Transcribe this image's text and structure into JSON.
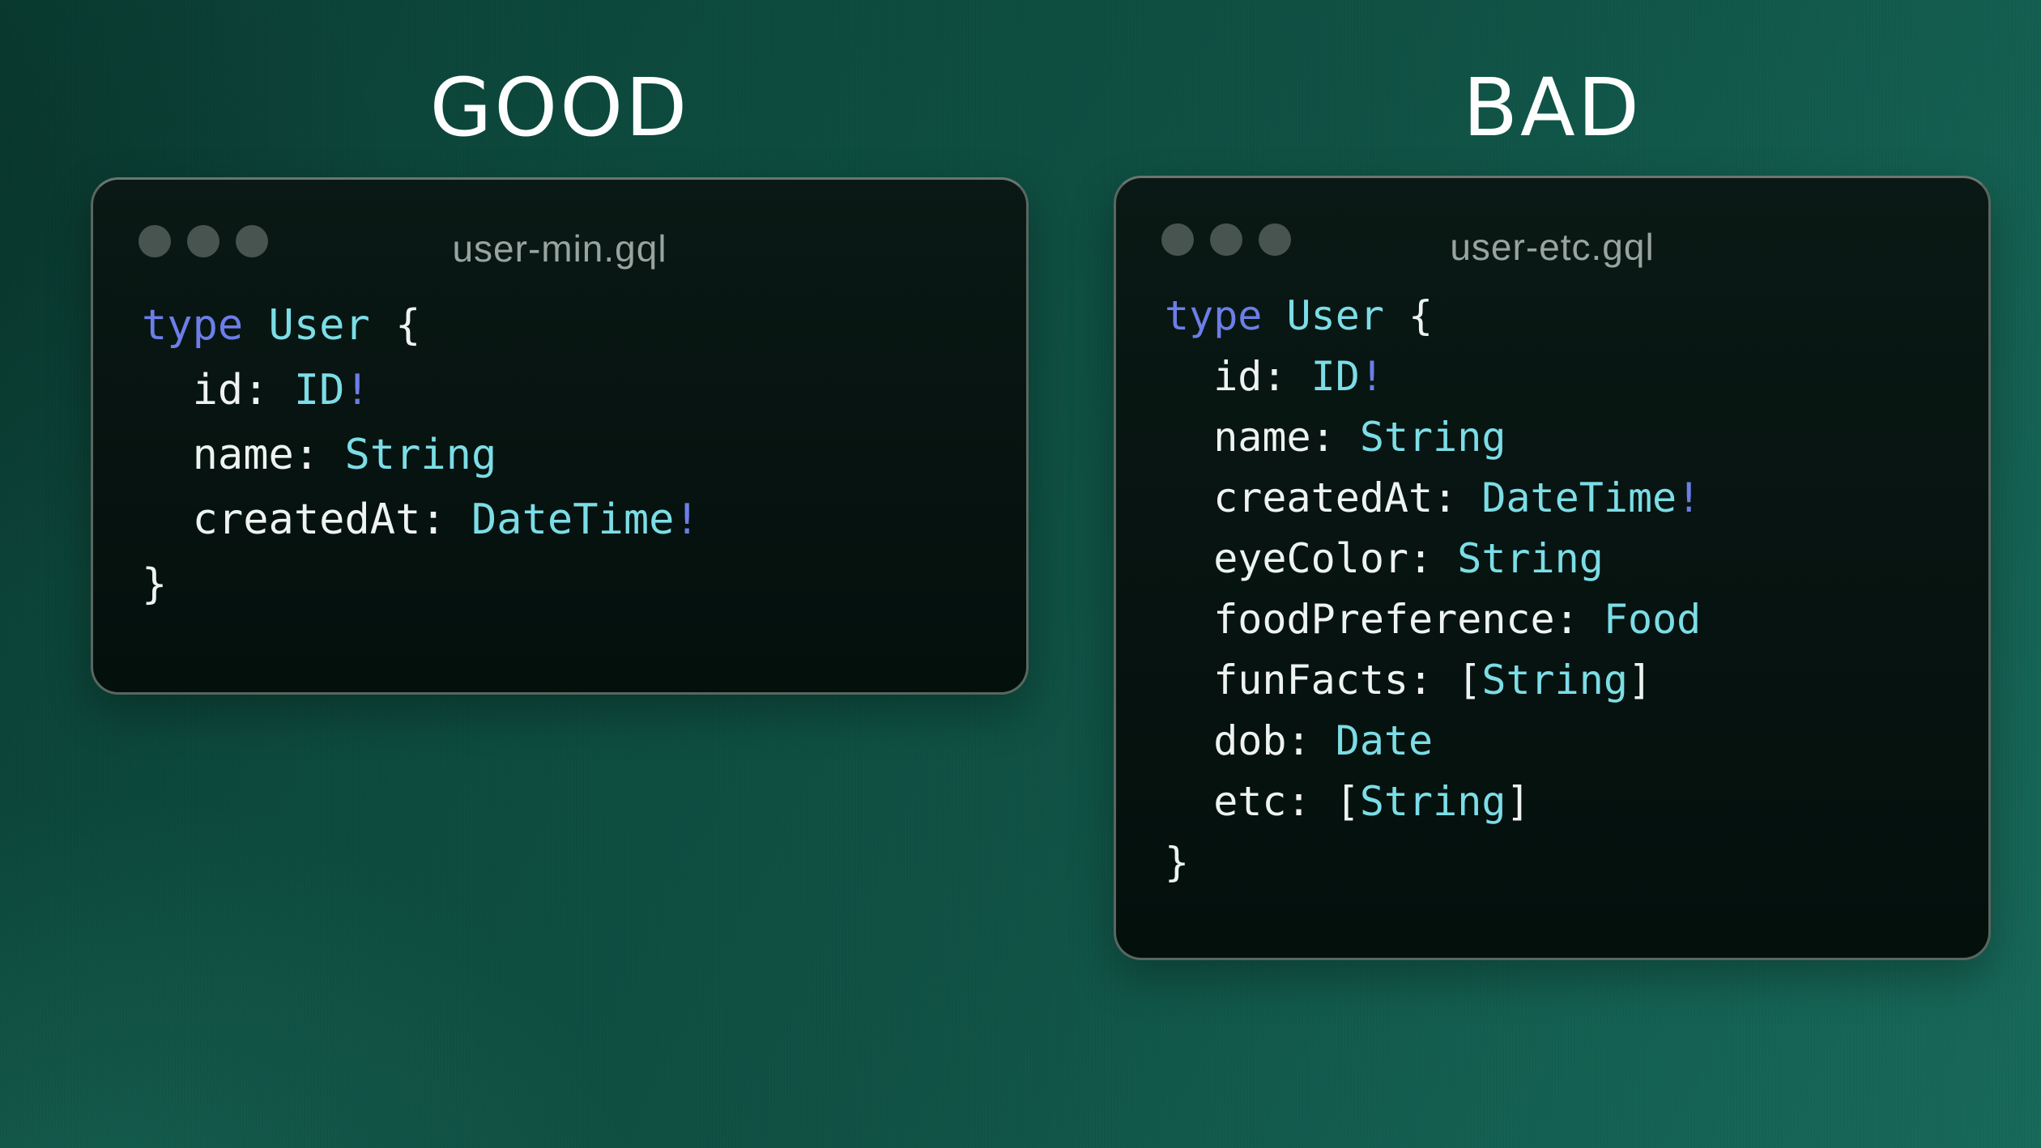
{
  "headings": {
    "good": "GOOD",
    "bad": "BAD"
  },
  "windows": [
    {
      "id": "good",
      "heading": "GOOD",
      "filename": "user-min.gql",
      "traffic_dots": 3,
      "code": [
        [
          [
            "type",
            "kw"
          ],
          [
            " ",
            "pl"
          ],
          [
            "User",
            "ty"
          ],
          [
            " {",
            "pl"
          ]
        ],
        [
          [
            "  id: ",
            "pl"
          ],
          [
            "ID",
            "ty"
          ],
          [
            "!",
            "kw"
          ]
        ],
        [
          [
            "  name: ",
            "pl"
          ],
          [
            "String",
            "ty"
          ]
        ],
        [
          [
            "  createdAt: ",
            "pl"
          ],
          [
            "DateTime",
            "ty"
          ],
          [
            "!",
            "kw"
          ]
        ],
        [
          [
            "}",
            "pl"
          ]
        ]
      ]
    },
    {
      "id": "bad",
      "heading": "BAD",
      "filename": "user-etc.gql",
      "traffic_dots": 3,
      "code": [
        [
          [
            "type",
            "kw"
          ],
          [
            " ",
            "pl"
          ],
          [
            "User",
            "ty"
          ],
          [
            " {",
            "pl"
          ]
        ],
        [
          [
            "  id: ",
            "pl"
          ],
          [
            "ID",
            "ty"
          ],
          [
            "!",
            "kw"
          ]
        ],
        [
          [
            "  name: ",
            "pl"
          ],
          [
            "String",
            "ty"
          ]
        ],
        [
          [
            "  createdAt: ",
            "pl"
          ],
          [
            "DateTime",
            "ty"
          ],
          [
            "!",
            "kw"
          ]
        ],
        [
          [
            "  eyeColor: ",
            "pl"
          ],
          [
            "String",
            "ty"
          ]
        ],
        [
          [
            "  foodPreference: ",
            "pl"
          ],
          [
            "Food",
            "ty"
          ]
        ],
        [
          [
            "  funFacts: [",
            "pl"
          ],
          [
            "String",
            "ty"
          ],
          [
            "]",
            "pl"
          ]
        ],
        [
          [
            "  dob: ",
            "pl"
          ],
          [
            "Date",
            "ty"
          ]
        ],
        [
          [
            "  etc: [",
            "pl"
          ],
          [
            "String",
            "ty"
          ],
          [
            "]",
            "pl"
          ]
        ],
        [
          [
            "}",
            "pl"
          ]
        ]
      ]
    }
  ],
  "colors": {
    "background_teal_top": "#0d4a3e",
    "background_teal_bottom": "#17695a",
    "heading_text": "#fdfefd",
    "window_background": "#071411",
    "window_border": "#5a665f",
    "filename_text": "#9aa49f",
    "traffic_dot": "#475450",
    "code_plain": "#eef3f1",
    "code_keyword_blue": "#6d7ee8",
    "code_type_cyan": "#7cdde6"
  }
}
